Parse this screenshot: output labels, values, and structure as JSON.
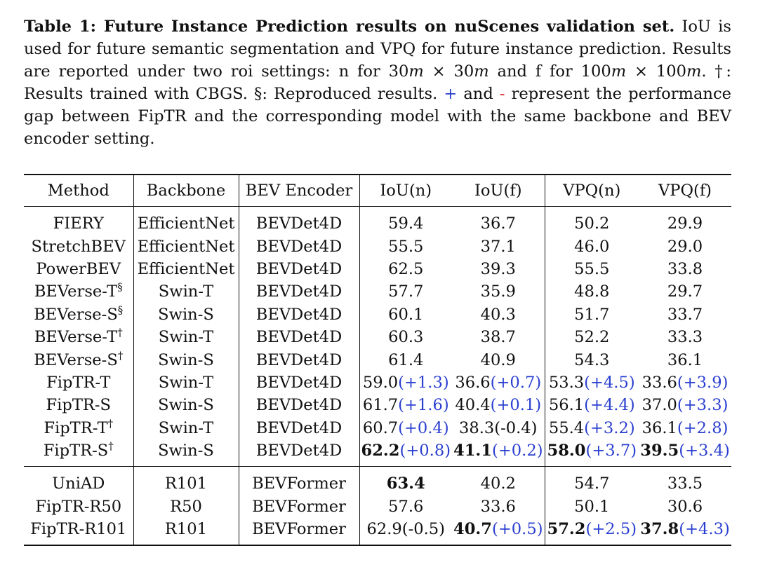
{
  "caption": {
    "label": "Table 1: Future Instance Prediction results on nuScenes validation set.",
    "part1": " IoU is used for future semantic segmentation and VPQ for future instance prediction. Results are reported under two roi settings: n for 30",
    "m1": "m",
    "x1": " × 30",
    "m2": "m",
    "and_f": " and f for 100",
    "m3": "m",
    "x2": " × 100",
    "m4": "m",
    "part2": ". †: Results trained with CBGS. §: Reproduced results. ",
    "plus": "+",
    "and": " and ",
    "minus": "-",
    "part3": " represent the performance gap between FipTR and the corresponding model with the same backbone and BEV encoder setting."
  },
  "headers": [
    "Method",
    "Backbone",
    "BEV Encoder",
    "IoU(n)",
    "IoU(f)",
    "VPQ(n)",
    "VPQ(f)"
  ],
  "group1": [
    {
      "method": "FIERY",
      "sup": "",
      "backbone": "EfficientNet",
      "encoder": "BEVDet4D",
      "iou_n": "59.4",
      "iou_f": "36.7",
      "vpq_n": "50.2",
      "vpq_f": "29.9"
    },
    {
      "method": "StretchBEV",
      "sup": "",
      "backbone": "EfficientNet",
      "encoder": "BEVDet4D",
      "iou_n": "55.5",
      "iou_f": "37.1",
      "vpq_n": "46.0",
      "vpq_f": "29.0"
    },
    {
      "method": "PowerBEV",
      "sup": "",
      "backbone": "EfficientNet",
      "encoder": "BEVDet4D",
      "iou_n": "62.5",
      "iou_f": "39.3",
      "vpq_n": "55.5",
      "vpq_f": "33.8"
    },
    {
      "method": "BEVerse-T",
      "sup": "§",
      "backbone": "Swin-T",
      "encoder": "BEVDet4D",
      "iou_n": "57.7",
      "iou_f": "35.9",
      "vpq_n": "48.8",
      "vpq_f": "29.7"
    },
    {
      "method": "BEVerse-S",
      "sup": "§",
      "backbone": "Swin-S",
      "encoder": "BEVDet4D",
      "iou_n": "60.1",
      "iou_f": "40.3",
      "vpq_n": "51.7",
      "vpq_f": "33.7"
    },
    {
      "method": "BEVerse-T",
      "sup": "†",
      "backbone": "Swin-T",
      "encoder": "BEVDet4D",
      "iou_n": "60.3",
      "iou_f": "38.7",
      "vpq_n": "52.2",
      "vpq_f": "33.3"
    },
    {
      "method": "BEVerse-S",
      "sup": "†",
      "backbone": "Swin-S",
      "encoder": "BEVDet4D",
      "iou_n": "61.4",
      "iou_f": "40.9",
      "vpq_n": "54.3",
      "vpq_f": "36.1"
    },
    {
      "method": "FipTR-T",
      "sup": "",
      "backbone": "Swin-T",
      "encoder": "BEVDet4D",
      "iou_n": "59.0",
      "iou_n_d": "(+1.3)",
      "iou_f": "36.6",
      "iou_f_d": "(+0.7)",
      "vpq_n": "53.3",
      "vpq_n_d": "(+4.5)",
      "vpq_f": "33.6",
      "vpq_f_d": "(+3.9)"
    },
    {
      "method": "FipTR-S",
      "sup": "",
      "backbone": "Swin-S",
      "encoder": "BEVDet4D",
      "iou_n": "61.7",
      "iou_n_d": "(+1.6)",
      "iou_f": "40.4",
      "iou_f_d": "(+0.1)",
      "vpq_n": "56.1",
      "vpq_n_d": "(+4.4)",
      "vpq_f": "37.0",
      "vpq_f_d": "(+3.3)"
    },
    {
      "method": "FipTR-T",
      "sup": "†",
      "backbone": "Swin-T",
      "encoder": "BEVDet4D",
      "iou_n": "60.7",
      "iou_n_d": "(+0.4)",
      "iou_f": "38.3(-0.4)",
      "vpq_n": "55.4",
      "vpq_n_d": "(+3.2)",
      "vpq_f": "36.1",
      "vpq_f_d": "(+2.8)"
    },
    {
      "method": "FipTR-S",
      "sup": "†",
      "backbone": "Swin-S",
      "encoder": "BEVDet4D",
      "iou_n": "62.2",
      "iou_n_d": "(+0.8)",
      "iou_f": "41.1",
      "iou_f_d": "(+0.2)",
      "vpq_n": "58.0",
      "vpq_n_d": "(+3.7)",
      "vpq_f": "39.5",
      "vpq_f_d": "(+3.4)"
    }
  ],
  "group2": [
    {
      "method": "UniAD",
      "backbone": "R101",
      "encoder": "BEVFormer",
      "iou_n": "63.4",
      "iou_f": "40.2",
      "vpq_n": "54.7",
      "vpq_f": "33.5"
    },
    {
      "method": "FipTR-R50",
      "backbone": "R50",
      "encoder": "BEVFormer",
      "iou_n": "57.6",
      "iou_f": "33.6",
      "vpq_n": "50.1",
      "vpq_f": "30.6"
    },
    {
      "method": "FipTR-R101",
      "backbone": "R101",
      "encoder": "BEVFormer",
      "iou_n": "62.9(-0.5)",
      "iou_f": "40.7",
      "iou_f_d": "(+0.5)",
      "vpq_n": "57.2",
      "vpq_n_d": "(+2.5)",
      "vpq_f": "37.8",
      "vpq_f_d": "(+4.3)"
    }
  ]
}
